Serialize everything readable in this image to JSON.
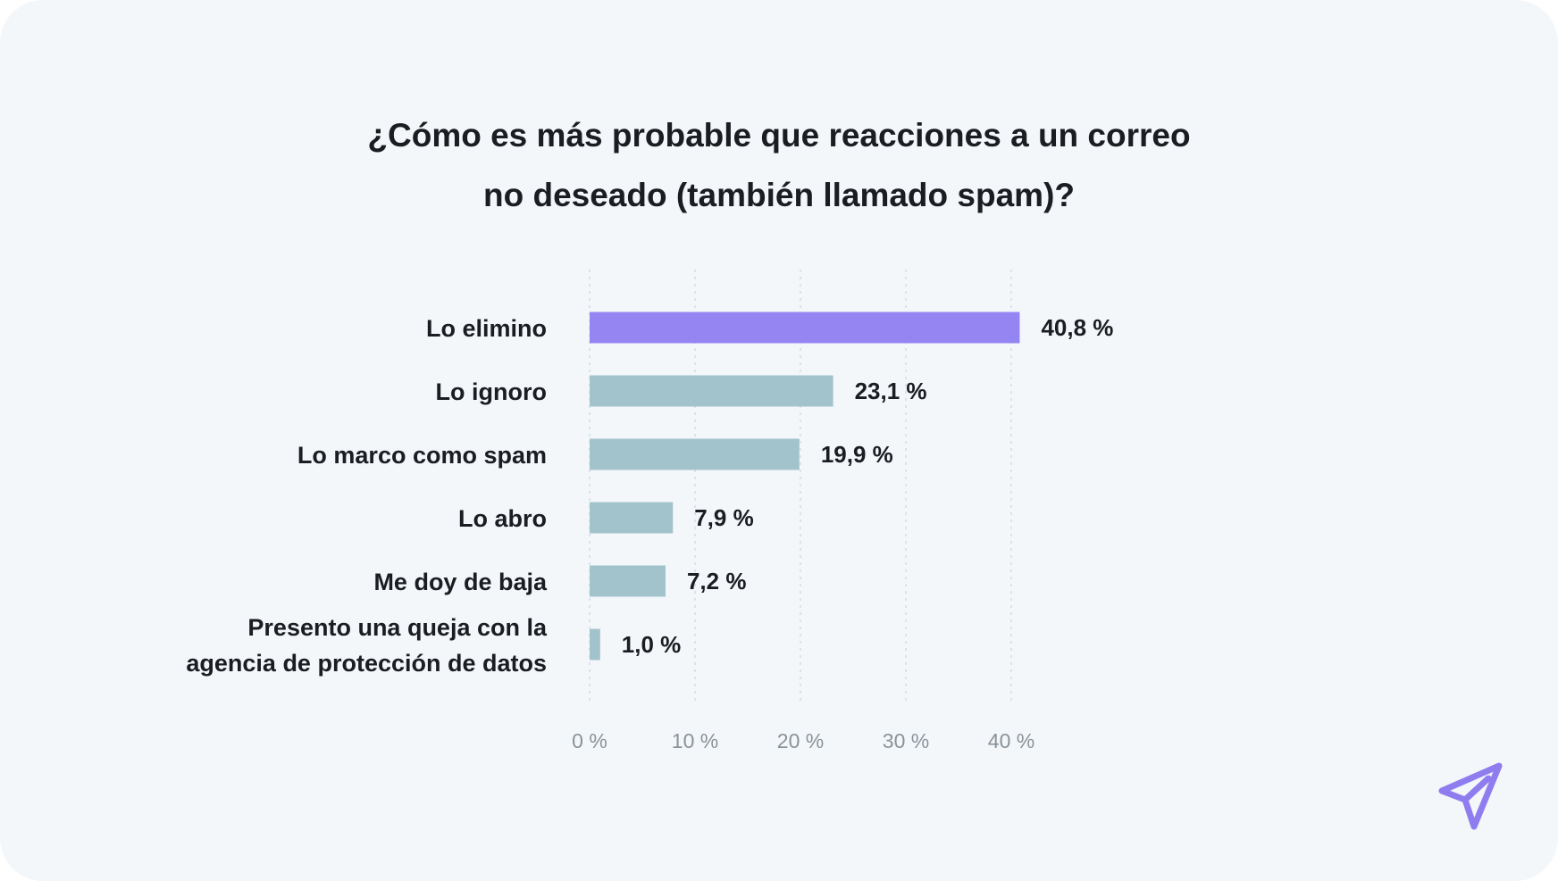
{
  "chart_data": {
    "type": "bar",
    "orientation": "horizontal",
    "title_lines": [
      "¿Cómo es más probable que reacciones a un correo",
      "no deseado (también llamado spam)?"
    ],
    "categories": [
      [
        "Lo elimino"
      ],
      [
        "Lo ignoro"
      ],
      [
        "Lo marco como spam"
      ],
      [
        "Lo abro"
      ],
      [
        "Me doy de baja"
      ],
      [
        "Presento una queja con la",
        "agencia de protección de datos"
      ]
    ],
    "values": [
      40.8,
      23.1,
      19.9,
      7.9,
      7.2,
      1.0
    ],
    "value_labels": [
      "40,8 %",
      "23,1 %",
      "19,9 %",
      "7,9 %",
      "7,2 %",
      "1,0 %"
    ],
    "xlim": [
      0,
      40
    ],
    "x_ticks": [
      0,
      10,
      20,
      30,
      40
    ],
    "x_tick_labels": [
      "0 %",
      "10 %",
      "20 %",
      "30 %",
      "40 %"
    ],
    "grid": "vertical dotted",
    "xlabel": "",
    "ylabel": "",
    "colors": {
      "highlight": "#9585f2",
      "default": "#a3c3cc",
      "text": "#1a1d21",
      "tick": "#8a9299",
      "logo": "#8f7df0"
    }
  },
  "logo": {
    "icon": "paper-plane-icon"
  }
}
